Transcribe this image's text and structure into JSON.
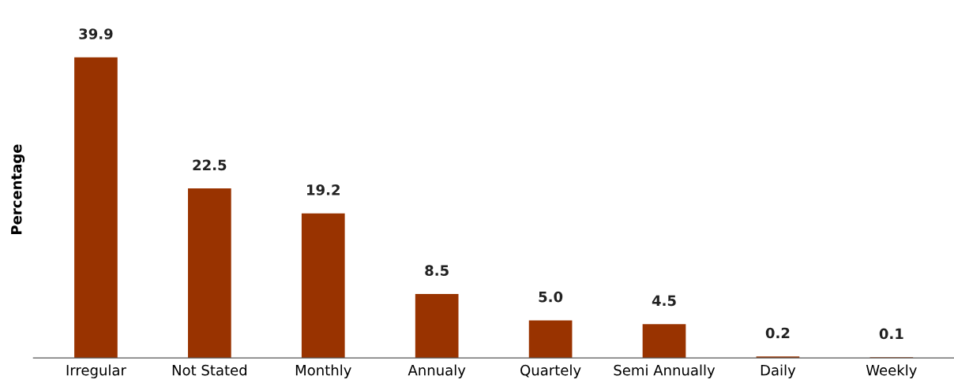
{
  "chart_data": {
    "type": "bar",
    "ylabel": "Percentage",
    "categories": [
      "Irregular",
      "Not Stated",
      "Monthly",
      "Annualy",
      "Quartely",
      "Semi Annually",
      "Daily",
      "Weekly"
    ],
    "values": [
      39.9,
      22.5,
      19.2,
      8.5,
      5.0,
      4.5,
      0.2,
      0.1
    ],
    "value_labels": [
      "39.9",
      "22.5",
      "19.2",
      "8.5",
      "5.0",
      "4.5",
      "0.2",
      "0.1"
    ],
    "color": "#993300",
    "grid": false,
    "legend": false
  }
}
